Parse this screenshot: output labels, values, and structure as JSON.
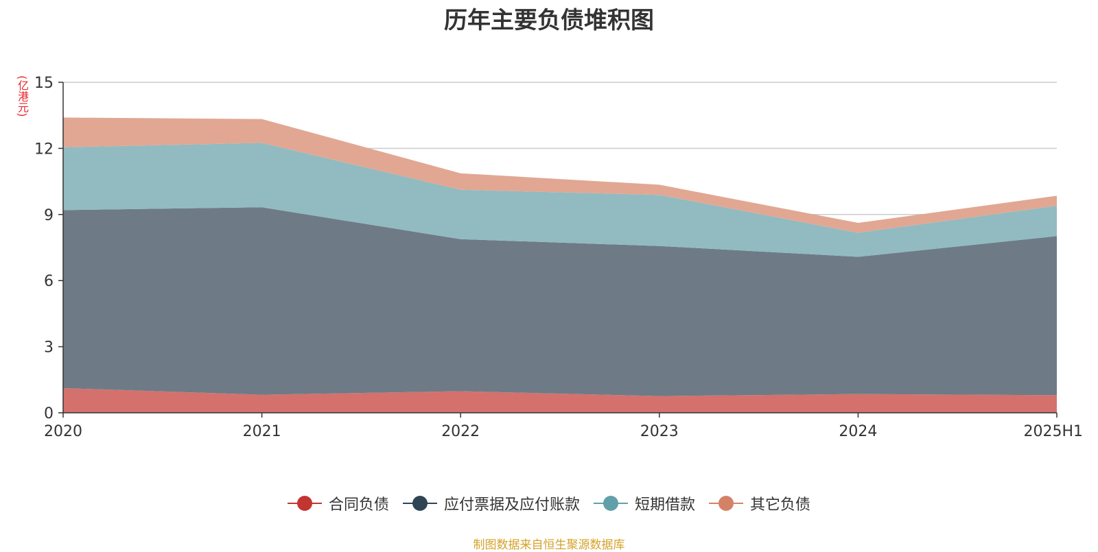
{
  "chart_data": {
    "type": "area",
    "stacked": true,
    "title": "历年主要负债堆积图",
    "unit": "(亿港元)",
    "categories": [
      "2020",
      "2021",
      "2022",
      "2023",
      "2024",
      "2025H1"
    ],
    "ylim": [
      0,
      15
    ],
    "yticks": [
      0,
      3,
      6,
      9,
      12,
      15
    ],
    "grid": true,
    "legend_position": "bottom",
    "series": [
      {
        "name": "合同负债",
        "values": [
          1.12,
          0.82,
          0.98,
          0.76,
          0.85,
          0.8
        ],
        "fill": "#d4716d",
        "color": "#c23531"
      },
      {
        "name": "应付票据及应付账款",
        "values": [
          8.08,
          8.51,
          6.9,
          6.81,
          6.23,
          7.22
        ],
        "fill": "#6e7b86",
        "color": "#2f4554"
      },
      {
        "name": "短期借款",
        "values": [
          2.85,
          2.92,
          2.24,
          2.32,
          1.09,
          1.38
        ],
        "fill": "#91bbc1",
        "color": "#61a0a8"
      },
      {
        "name": "其它负债",
        "values": [
          1.35,
          1.08,
          0.75,
          0.46,
          0.45,
          0.45
        ],
        "fill": "#e1a793",
        "color": "#d48265"
      }
    ]
  },
  "footer": {
    "source": "制图数据来自恒生聚源数据库"
  }
}
